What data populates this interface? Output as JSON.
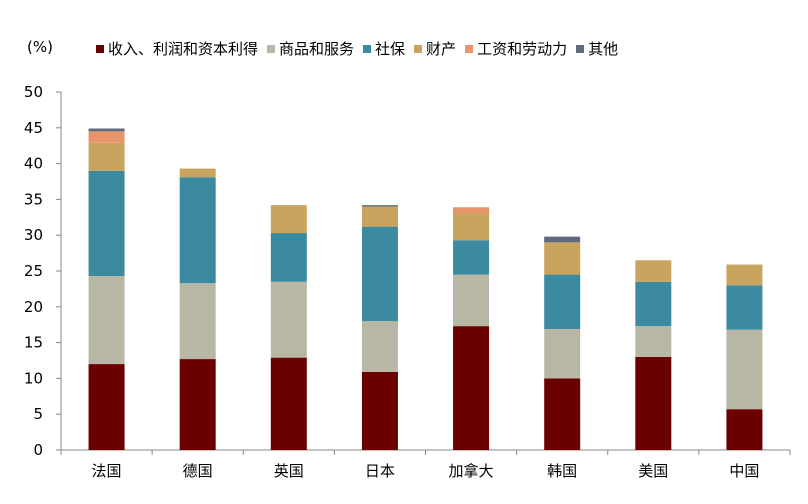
{
  "chart_data": {
    "type": "bar",
    "stacked": true,
    "unit_label": "(%)",
    "categories": [
      "法国",
      "德国",
      "英国",
      "日本",
      "加拿大",
      "韩国",
      "美国",
      "中国"
    ],
    "series": [
      {
        "name": "收入、利润和资本利得",
        "color": "#6b0000",
        "values": [
          12.0,
          12.7,
          12.9,
          10.9,
          17.3,
          10.0,
          13.0,
          5.7
        ]
      },
      {
        "name": "商品和服务",
        "color": "#b8b7a6",
        "values": [
          12.3,
          10.6,
          10.6,
          7.1,
          7.2,
          6.9,
          4.3,
          11.1
        ]
      },
      {
        "name": "社保",
        "color": "#3c8aa0",
        "values": [
          14.7,
          14.8,
          6.8,
          13.2,
          4.8,
          7.6,
          6.2,
          6.2
        ]
      },
      {
        "name": "财产",
        "color": "#c8a45e",
        "values": [
          3.9,
          1.2,
          3.9,
          2.8,
          3.8,
          4.5,
          3.0,
          2.9
        ]
      },
      {
        "name": "工资和劳动力",
        "color": "#e8956b",
        "values": [
          1.6,
          0,
          0,
          0,
          0.8,
          0,
          0,
          0
        ]
      },
      {
        "name": "其他",
        "color": "#5f6a7d",
        "values": [
          0.4,
          0,
          0,
          0.2,
          0,
          0.8,
          0,
          0
        ]
      }
    ],
    "ylim": [
      0,
      50
    ],
    "yticks": [
      0,
      5,
      10,
      15,
      20,
      25,
      30,
      35,
      40,
      45,
      50
    ],
    "grid": false,
    "legend_position": "top"
  }
}
